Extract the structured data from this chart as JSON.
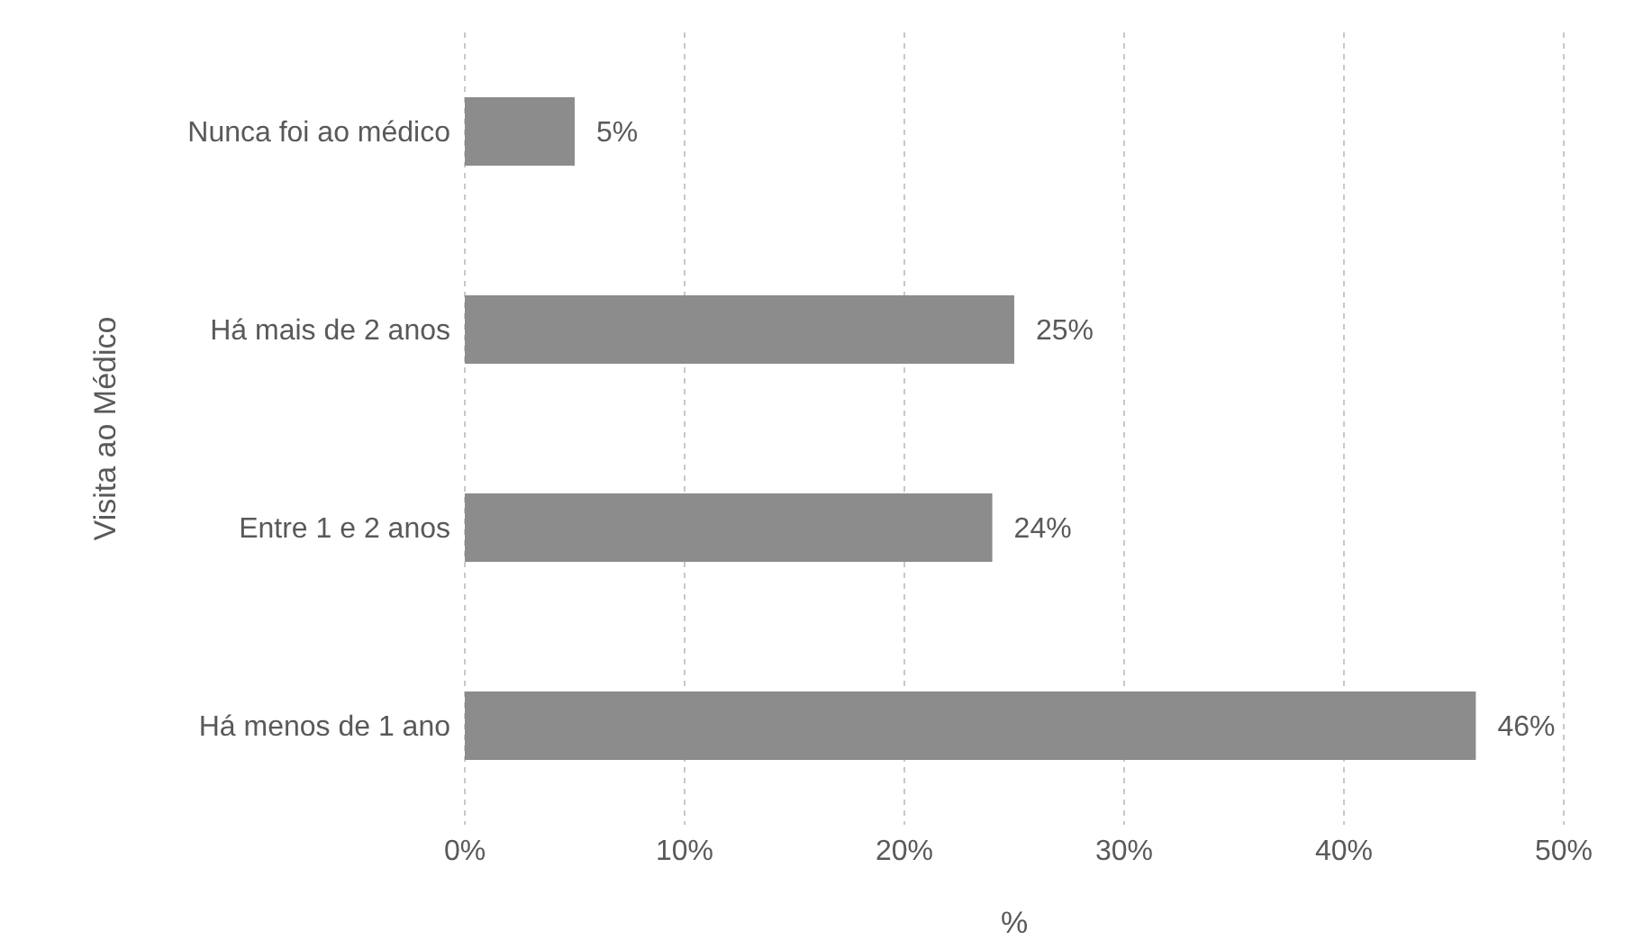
{
  "chart_data": {
    "type": "bar",
    "orientation": "horizontal",
    "categories": [
      "Nunca foi ao médico",
      "Há mais de 2 anos",
      "Entre 1 e 2 anos",
      "Há menos de 1 ano"
    ],
    "values": [
      5,
      25,
      24,
      46
    ],
    "value_labels": [
      "5%",
      "25%",
      "24%",
      "46%"
    ],
    "color": "#8c8c8c",
    "xlim": [
      0,
      50
    ],
    "xticks": [
      {
        "value": 0,
        "label": "0%"
      },
      {
        "value": 10,
        "label": "10%"
      },
      {
        "value": 20,
        "label": "20%"
      },
      {
        "value": 30,
        "label": "30%"
      },
      {
        "value": 40,
        "label": "40%"
      },
      {
        "value": 50,
        "label": "50%"
      }
    ],
    "xlabel": "%",
    "ylabel": "Visita ao Médico",
    "grid": "x"
  }
}
